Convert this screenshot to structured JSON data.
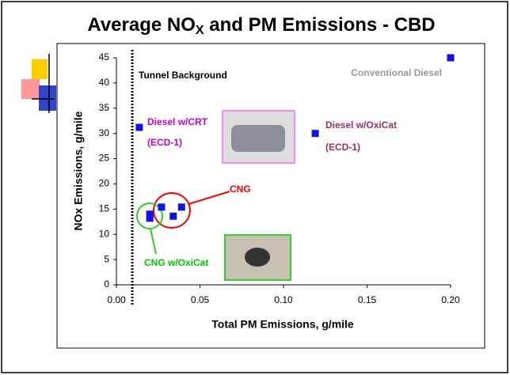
{
  "chart_data": {
    "type": "scatter",
    "title_parts": [
      "Average NO",
      "X",
      " and PM Emissions - CBD"
    ],
    "x_label": "Total PM Emissions, g/mile",
    "y_label": "NOx Emissions, g/mile",
    "xlim": [
      0,
      0.2
    ],
    "ylim": [
      0,
      45
    ],
    "xticks": [
      {
        "value": 0,
        "label": "0.00"
      },
      0.05,
      {
        "value": 0.1,
        "label": "0.10"
      },
      0.15,
      {
        "value": 0.2,
        "label": "0.20"
      }
    ],
    "yticks": [
      0,
      5,
      10,
      15,
      20,
      25,
      30,
      35,
      40,
      45
    ],
    "grid": false,
    "series": [
      {
        "color": "#1212e6",
        "x": [
          0.2,
          0.0137,
          0.119,
          0.027,
          0.039,
          0.034,
          0.02,
          0.02
        ],
        "values": [
          45,
          31.2,
          30.0,
          15.4,
          15.4,
          13.6,
          14.0,
          13.2
        ]
      }
    ],
    "reference_line_x": 0.0095,
    "annotations": [
      {
        "text": "Tunnel Background",
        "color": "#000000"
      },
      {
        "text": "Conventional Diesel",
        "color": "#999999"
      },
      {
        "text": "Diesel w/CRT",
        "color": "#cc00cc"
      },
      {
        "text": "(ECD-1)",
        "color": "#cc00cc"
      },
      {
        "text": "Diesel w/OxiCat",
        "color": "#993366"
      },
      {
        "text": "(ECD-1)",
        "color": "#993366"
      },
      {
        "text": "CNG",
        "color": "#ff0000"
      },
      {
        "text": "CNG w/OxiCat",
        "color": "#00cc00"
      }
    ]
  }
}
